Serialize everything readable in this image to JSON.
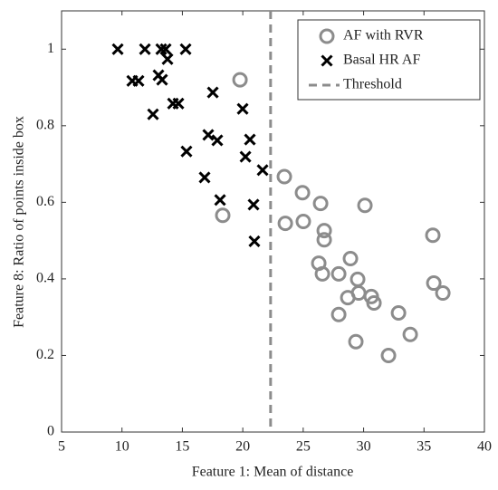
{
  "chart_data": {
    "type": "scatter",
    "xlabel": "Feature 1: Mean of distance",
    "ylabel": "Feature 8: Ratio of points inside box",
    "xlim": [
      5,
      40
    ],
    "xticks": [
      5,
      10,
      15,
      20,
      25,
      30,
      35,
      40
    ],
    "ylim": [
      0,
      1.1
    ],
    "yticks": [
      0,
      0.2,
      0.4,
      0.6,
      0.8,
      1
    ],
    "legend": "upper right",
    "series": [
      {
        "name": "AF with RVR",
        "color": "#8c8c8c",
        "marker": "circle",
        "x": [
          19.77,
          18.34,
          23.44,
          24.94,
          26.44,
          23.52,
          25.01,
          26.74,
          26.74,
          30.11,
          35.73,
          28.91,
          26.29,
          26.59,
          27.94,
          29.51,
          28.69,
          29.59,
          30.64,
          30.86,
          32.89,
          35.81,
          36.56,
          27.94,
          33.86,
          29.36,
          32.06
        ],
        "values": [
          0.92,
          0.566,
          0.667,
          0.625,
          0.597,
          0.545,
          0.55,
          0.526,
          0.502,
          0.592,
          0.514,
          0.453,
          0.441,
          0.413,
          0.413,
          0.399,
          0.351,
          0.363,
          0.354,
          0.337,
          0.311,
          0.389,
          0.363,
          0.307,
          0.255,
          0.236,
          0.2
        ]
      },
      {
        "name": "Basal HR AF",
        "color": "#000000",
        "marker": "x",
        "x": [
          9.65,
          11.9,
          13.25,
          13.62,
          15.27,
          10.85,
          11.37,
          13.02,
          13.32,
          13.77,
          12.57,
          14.22,
          14.67,
          17.52,
          19.99,
          17.14,
          17.89,
          20.59,
          15.34,
          20.22,
          21.64,
          16.84,
          18.12,
          20.89,
          20.96
        ],
        "values": [
          1.0,
          1.0,
          1.0,
          1.0,
          1.0,
          0.917,
          0.917,
          0.932,
          0.92,
          0.974,
          0.83,
          0.858,
          0.858,
          0.887,
          0.844,
          0.776,
          0.762,
          0.764,
          0.733,
          0.719,
          0.684,
          0.665,
          0.606,
          0.594,
          0.498
        ]
      }
    ],
    "threshold": {
      "name": "Threshold",
      "value": 22.3,
      "color": "#8c8c8c"
    }
  }
}
